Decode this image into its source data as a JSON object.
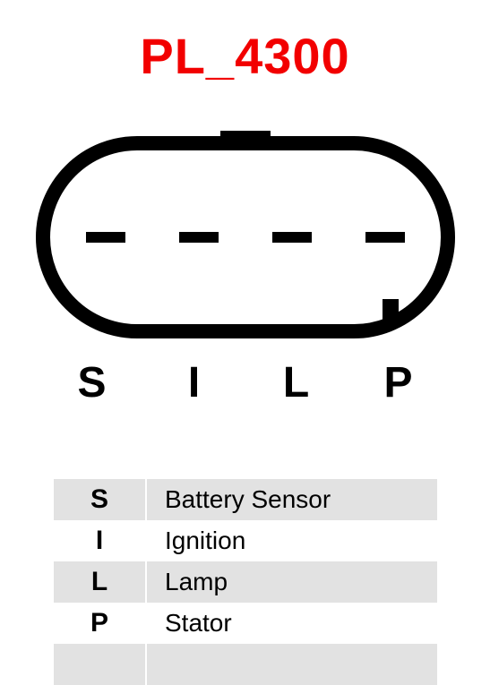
{
  "title": {
    "text": "PL_4300",
    "color": "#f20000",
    "fontsize": 56,
    "fontweight": 700
  },
  "connector": {
    "type": "connector-diagram",
    "outline_color": "#000000",
    "outline_width": 16,
    "body_rx": 105,
    "body_width": 452,
    "body_height": 210,
    "tab_width": 56,
    "tab_height": 14,
    "pin_count": 4,
    "pin_dash_width": 44,
    "pin_dash_height": 12,
    "pin_dash_color": "#000000",
    "notch_width": 18,
    "notch_height": 28,
    "background": "#ffffff"
  },
  "pin_labels": [
    "S",
    "I",
    "L",
    "P"
  ],
  "pin_label_style": {
    "fontsize": 48,
    "fontweight": 700,
    "color": "#000000"
  },
  "legend": {
    "shaded_bg": "#e2e2e2",
    "rows": [
      {
        "symbol": "S",
        "desc": "Battery Sensor",
        "shaded": true
      },
      {
        "symbol": "I",
        "desc": "Ignition",
        "shaded": false
      },
      {
        "symbol": "L",
        "desc": "Lamp",
        "shaded": true
      },
      {
        "symbol": "P",
        "desc": "Stator",
        "shaded": false
      },
      {
        "symbol": "",
        "desc": "",
        "shaded": true
      }
    ],
    "symbol_fontsize": 30,
    "desc_fontsize": 28
  }
}
